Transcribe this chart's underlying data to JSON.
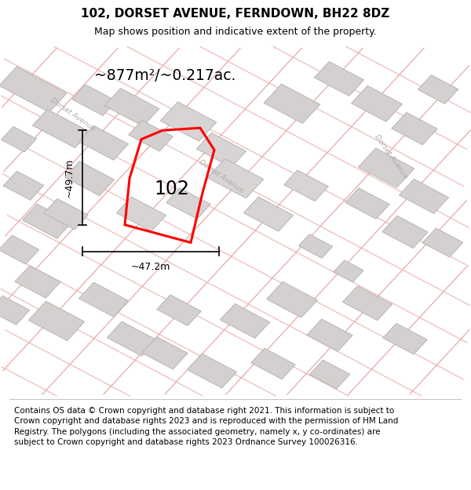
{
  "title": "102, DORSET AVENUE, FERNDOWN, BH22 8DZ",
  "subtitle": "Map shows position and indicative extent of the property.",
  "area_label": "~877m²/~0.217ac.",
  "width_label": "~47.2m",
  "height_label": "~49.7m",
  "number_label": "102",
  "footer": "Contains OS data © Crown copyright and database right 2021. This information is subject to Crown copyright and database rights 2023 and is reproduced with the permission of HM Land Registry. The polygons (including the associated geometry, namely x, y co-ordinates) are subject to Crown copyright and database rights 2023 Ordnance Survey 100026316.",
  "map_bg": "#ebe7e7",
  "title_fontsize": 11,
  "subtitle_fontsize": 9,
  "footer_fontsize": 7.5,
  "street_label_1": "Dorset Avenue",
  "street_label_2": "Dorset Avenue",
  "road_color": "#e8a8a8",
  "building_color": "#d4d0d0",
  "building_edge": "#b8b4b4"
}
